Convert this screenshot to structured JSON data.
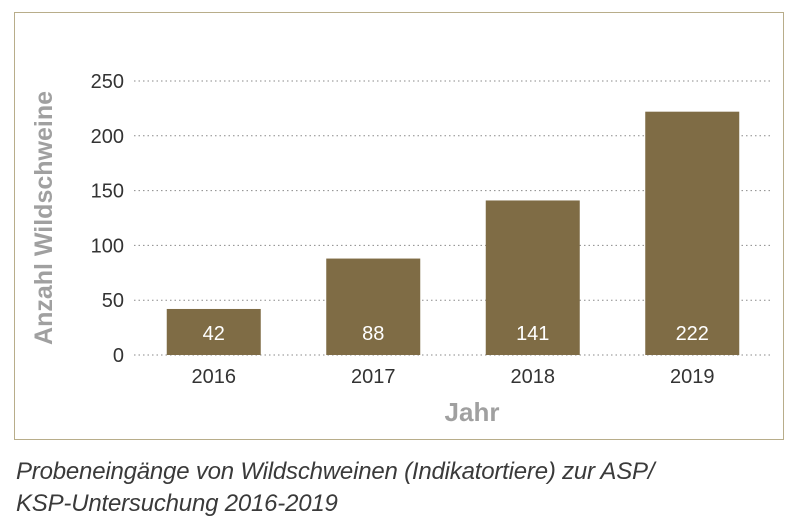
{
  "chart_data": {
    "type": "bar",
    "categories": [
      "2016",
      "2017",
      "2018",
      "2019"
    ],
    "values": [
      42,
      88,
      141,
      222
    ],
    "data_labels": [
      "42",
      "88",
      "141",
      "222"
    ],
    "xlabel": "Jahr",
    "ylabel": "Anzahl Wildschweine",
    "ylim": [
      0,
      250
    ],
    "yticks": [
      0,
      50,
      100,
      150,
      200,
      250
    ],
    "grid": true,
    "legend": "none",
    "colors": {
      "bar": "#7f6c45",
      "grid": "#8a8a8a",
      "axis_label": "#a0a0a0",
      "label_text": "#ffffff",
      "tick_text": "#333333"
    }
  },
  "caption": {
    "line1": "Probeneingänge von Wildschweinen (Indikatortiere) zur ASP/",
    "line2": "KSP-Untersuchung 2016-2019"
  }
}
